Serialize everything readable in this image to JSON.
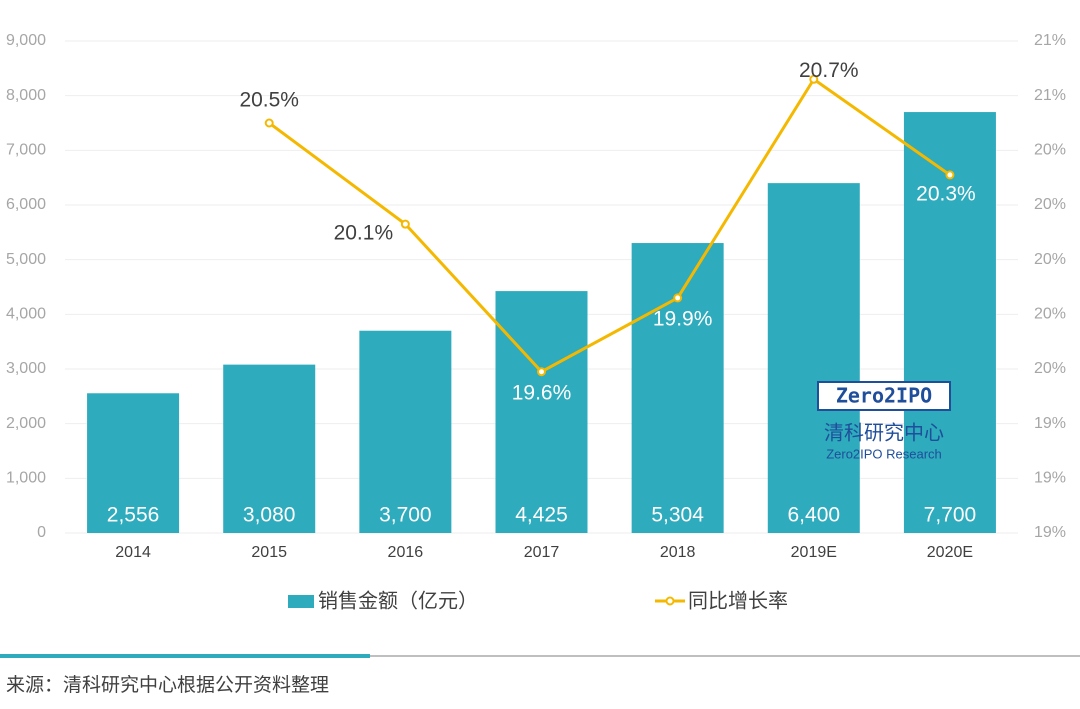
{
  "chart_data": {
    "type": "combo",
    "categories": [
      "2014",
      "2015",
      "2016",
      "2017",
      "2018",
      "2019E",
      "2020E"
    ],
    "series": [
      {
        "name": "销售金额（亿元）",
        "type": "bar",
        "color": "#2eabbd",
        "values": [
          2556,
          3080,
          3700,
          4425,
          5304,
          6400,
          7700
        ],
        "value_labels": [
          "2,556",
          "3,080",
          "3,700",
          "4,425",
          "5,304",
          "6,400",
          "7,700"
        ]
      },
      {
        "name": "同比增长率",
        "type": "line",
        "axis": "y2",
        "color": "#f5b800",
        "values": [
          null,
          20.5,
          20.13,
          19.59,
          19.86,
          20.66,
          20.31
        ],
        "value_labels": [
          null,
          "20.5%",
          "20.1%",
          "19.6%",
          "19.9%",
          "20.7%",
          "20.3%"
        ]
      }
    ],
    "ylim": [
      0,
      9000
    ],
    "yticks": [
      0,
      {
        "value": 1000,
        "label": "1,000"
      },
      {
        "value": 2000,
        "label": "2,000"
      },
      {
        "value": 3000,
        "label": "3,000"
      },
      {
        "value": 4000,
        "label": "4,000"
      },
      {
        "value": 5000,
        "label": "5,000"
      },
      {
        "value": 6000,
        "label": "6,000"
      },
      {
        "value": 7000,
        "label": "7,000"
      },
      {
        "value": 8000,
        "label": "8,000"
      },
      {
        "value": 9000,
        "label": "9,000"
      }
    ],
    "y2lim": [
      19.0,
      20.8
    ],
    "y2ticks": [
      {
        "value": 19.0,
        "label": "19%"
      },
      {
        "value": 19.2,
        "label": "19%"
      },
      {
        "value": 19.4,
        "label": "19%"
      },
      {
        "value": 19.6,
        "label": "20%"
      },
      {
        "value": 19.8,
        "label": "20%"
      },
      {
        "value": 20.0,
        "label": "20%"
      },
      {
        "value": 20.2,
        "label": "20%"
      },
      {
        "value": 20.4,
        "label": "20%"
      },
      {
        "value": 20.6,
        "label": "21%"
      },
      {
        "value": 20.8,
        "label": "21%"
      }
    ],
    "grid": true,
    "legend": "bottom",
    "watermark": [
      "Zero2IPO",
      "清科研究中心",
      "Zero2IPO Research"
    ],
    "source": "来源：清科研究中心根据公开资料整理"
  }
}
